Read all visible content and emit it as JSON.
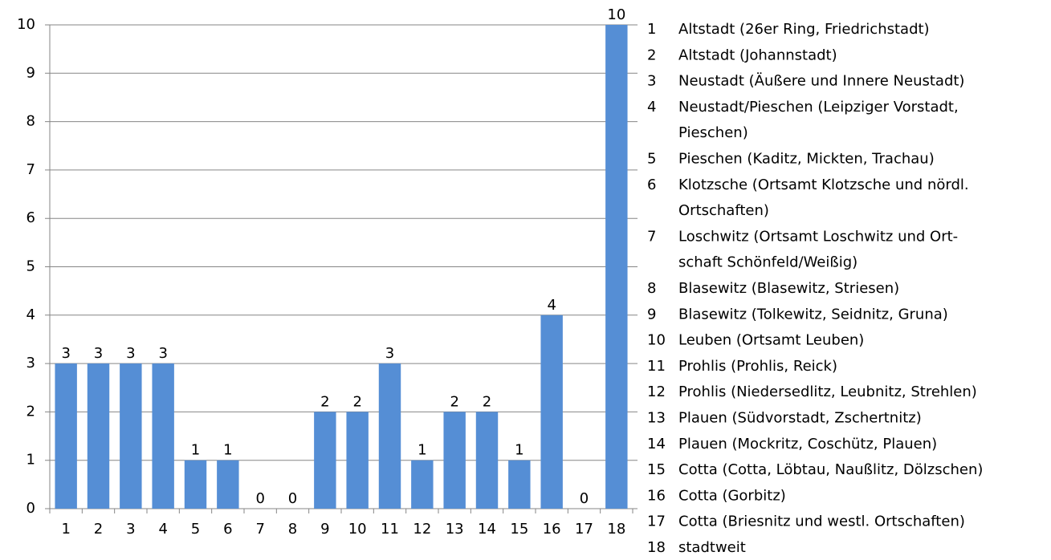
{
  "chart_data": {
    "type": "bar",
    "categories": [
      "1",
      "2",
      "3",
      "4",
      "5",
      "6",
      "7",
      "8",
      "9",
      "10",
      "11",
      "12",
      "13",
      "14",
      "15",
      "16",
      "17",
      "18"
    ],
    "values": [
      3,
      3,
      3,
      3,
      1,
      1,
      0,
      0,
      2,
      2,
      3,
      1,
      2,
      2,
      1,
      4,
      0,
      10
    ],
    "color": "#558ed5",
    "ylim": [
      0,
      10
    ],
    "yticks": [
      0,
      1,
      2,
      3,
      4,
      5,
      6,
      7,
      8,
      9,
      10
    ],
    "grid": true,
    "legend": [
      [
        "Altstadt (26er Ring, Friedrichstadt)"
      ],
      [
        "Altstadt (Johannstadt)"
      ],
      [
        "Neustadt (Äußere und Innere Neustadt)"
      ],
      [
        "Neustadt/Pieschen (Leipziger Vorstadt,",
        "Pieschen)"
      ],
      [
        "Pieschen (Kaditz, Mickten, Trachau)"
      ],
      [
        "Klotzsche (Ortsamt Klotzsche und nördl.",
        "Ortschaften)"
      ],
      [
        "Loschwitz (Ortsamt Loschwitz und Ort-",
        "schaft Schönfeld/Weißig)"
      ],
      [
        "Blasewitz (Blasewitz, Striesen)"
      ],
      [
        "Blasewitz (Tolkewitz, Seidnitz, Gruna)"
      ],
      [
        "Leuben (Ortsamt Leuben)"
      ],
      [
        "Prohlis (Prohlis, Reick)"
      ],
      [
        "Prohlis (Niedersedlitz, Leubnitz, Strehlen)"
      ],
      [
        "Plauen (Südvorstadt, Zschertnitz)"
      ],
      [
        "Plauen (Mockritz, Coschütz, Plauen)"
      ],
      [
        "Cotta (Cotta, Löbtau, Naußlitz, Dölzschen)"
      ],
      [
        "Cotta (Gorbitz)"
      ],
      [
        "Cotta (Briesnitz und westl. Ortschaften)"
      ],
      [
        "stadtweit"
      ]
    ]
  }
}
